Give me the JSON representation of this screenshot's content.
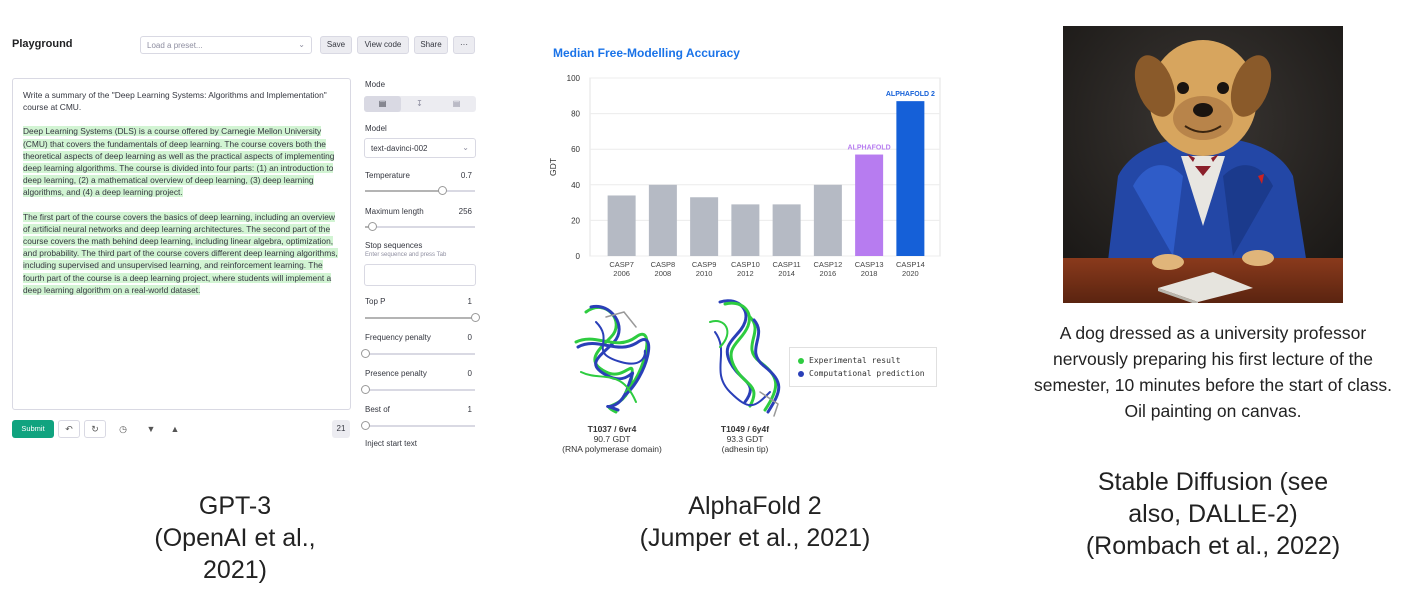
{
  "playground": {
    "title": "Playground",
    "preset_placeholder": "Load a preset...",
    "buttons": {
      "save": "Save",
      "view_code": "View code",
      "share": "Share",
      "more": "···"
    },
    "prompt": "Write a summary of the \"Deep Learning Systems: Algorithms and Implementation\" course at CMU.",
    "completion_p1": "Deep Learning Systems (DLS) is a course offered by Carnegie Mellon University (CMU) that covers the fundamentals of deep learning. The course covers both the theoretical aspects of deep learning as well as the practical aspects of implementing deep learning algorithms. The course is divided into four parts: (1) an introduction to deep learning, (2) a mathematical overview of deep learning, (3) deep learning algorithms, and (4) a deep learning project.",
    "completion_p2": "The first part of the course covers the basics of deep learning, including an overview of artificial neural networks and deep learning architectures. The second part of the course covers the math behind deep learning, including linear algebra, optimization, and probability. The third part of the course covers different deep learning algorithms, including supervised and unsupervised learning, and reinforcement learning. The fourth part of the course is a deep learning project, where students will implement a deep learning algorithm on a real-world dataset.",
    "submit": "Submit",
    "token_count": "21",
    "settings": {
      "mode_label": "Mode",
      "model_label": "Model",
      "model_value": "text-davinci-002",
      "temperature_label": "Temperature",
      "temperature_value": "0.7",
      "temperature": 0.7,
      "max_length_label": "Maximum length",
      "max_length_value": "256",
      "max_length": 256,
      "stop_label": "Stop sequences",
      "stop_hint": "Enter sequence and press Tab",
      "top_p_label": "Top P",
      "top_p_value": "1",
      "top_p": 1,
      "freq_label": "Frequency penalty",
      "freq_value": "0",
      "presence_label": "Presence penalty",
      "presence_value": "0",
      "best_of_label": "Best of",
      "best_of_value": "1",
      "inject_label": "Inject start text"
    }
  },
  "alphafold": {
    "legend": {
      "experimental": "Experimental result",
      "computational": "Computational prediction"
    },
    "protein1": {
      "id": "T1037 / 6vr4",
      "gdt": "90.7 GDT",
      "desc": "(RNA polymerase domain)"
    },
    "protein2": {
      "id": "T1049 / 6y4f",
      "gdt": "93.3 GDT",
      "desc": "(adhesin tip)"
    },
    "colors": {
      "experimental": "#2ecc40",
      "computational": "#2a3fb8"
    }
  },
  "chart_data": {
    "type": "bar",
    "title": "Median Free-Modelling Accuracy",
    "ylabel": "GDT",
    "ylim": [
      0,
      100
    ],
    "yticks": [
      0,
      20,
      40,
      60,
      80,
      100
    ],
    "categories": [
      "CASP7",
      "CASP8",
      "CASP9",
      "CASP10",
      "CASP11",
      "CASP12",
      "CASP13",
      "CASP14"
    ],
    "years": [
      "2006",
      "2008",
      "2010",
      "2012",
      "2014",
      "2016",
      "2018",
      "2020"
    ],
    "values": [
      34,
      40,
      33,
      29,
      29,
      40,
      57,
      87
    ],
    "bar_colors": [
      "#b5bac4",
      "#b5bac4",
      "#b5bac4",
      "#b5bac4",
      "#b5bac4",
      "#b5bac4",
      "#b77cf0",
      "#1560d8"
    ],
    "annotations": [
      {
        "category": "CASP13",
        "text": "ALPHAFOLD",
        "color": "#b77cf0"
      },
      {
        "category": "CASP14",
        "text": "ALPHAFOLD 2",
        "color": "#1560d8"
      }
    ],
    "grid": true
  },
  "stable_diffusion": {
    "prompt": "A dog dressed as a university professor nervously preparing his first lecture of the semester, 10 minutes before the start of class.  Oil painting on canvas."
  },
  "captions": {
    "gpt3_l1": "GPT-3",
    "gpt3_l2": "(OpenAI et al.,",
    "gpt3_l3": "2021)",
    "af_l1": "AlphaFold 2",
    "af_l2": "(Jumper et al., 2021)",
    "sd_l1": "Stable Diffusion (see",
    "sd_l2": "also, DALLE-2)",
    "sd_l3": "(Rombach et al., 2022)"
  }
}
